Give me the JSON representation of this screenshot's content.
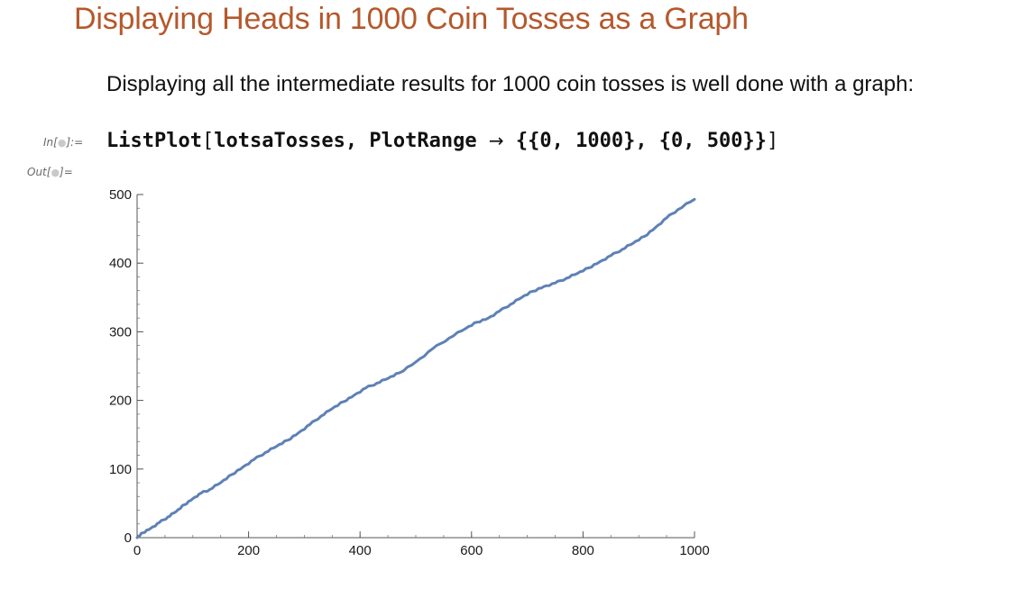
{
  "section": {
    "title": "Displaying Heads in 1000 Coin Tosses as a Graph"
  },
  "text_cell": {
    "text": "Displaying all the intermediate results for 1000 coin tosses is well done with a graph:"
  },
  "input_cell": {
    "label_prefix": "In[",
    "label_suffix": "]:=",
    "code_func": "ListPlot",
    "code_open": "[",
    "code_args": "lotsaTosses, PlotRange ",
    "code_arrow": "→",
    "code_range": " {{0, 1000}, {0, 500}}",
    "code_close": "]"
  },
  "output_cell": {
    "label_prefix": "Out[",
    "label_suffix": "]="
  },
  "cell_label_dot": "●",
  "chart_data": {
    "type": "line",
    "title": "",
    "xlabel": "",
    "ylabel": "",
    "xlim": [
      0,
      1000
    ],
    "ylim": [
      0,
      500
    ],
    "x_ticks": [
      0,
      200,
      400,
      600,
      800,
      1000
    ],
    "y_ticks": [
      0,
      100,
      200,
      300,
      400,
      500
    ],
    "line_color": "#5e81b5",
    "grid": false,
    "series": [
      {
        "x": [
          0,
          10,
          25,
          40,
          55,
          70,
          85,
          100,
          115,
          130,
          150,
          170,
          190,
          210,
          230,
          250,
          270,
          290,
          310,
          330,
          350,
          370,
          390,
          410,
          430,
          450,
          470,
          500,
          530,
          560,
          590,
          610,
          630,
          650,
          670,
          690,
          710,
          730,
          750,
          770,
          790,
          810,
          830,
          850,
          870,
          890,
          910,
          930,
          950,
          970,
          1000
        ],
        "y": [
          0,
          7,
          14,
          22,
          30,
          38,
          48,
          57,
          65,
          70,
          80,
          92,
          103,
          114,
          124,
          133,
          142,
          153,
          165,
          177,
          188,
          198,
          208,
          218,
          225,
          232,
          240,
          256,
          275,
          291,
          305,
          314,
          320,
          330,
          340,
          350,
          359,
          366,
          371,
          378,
          385,
          393,
          402,
          411,
          420,
          429,
          439,
          452,
          466,
          478,
          493
        ]
      }
    ]
  }
}
